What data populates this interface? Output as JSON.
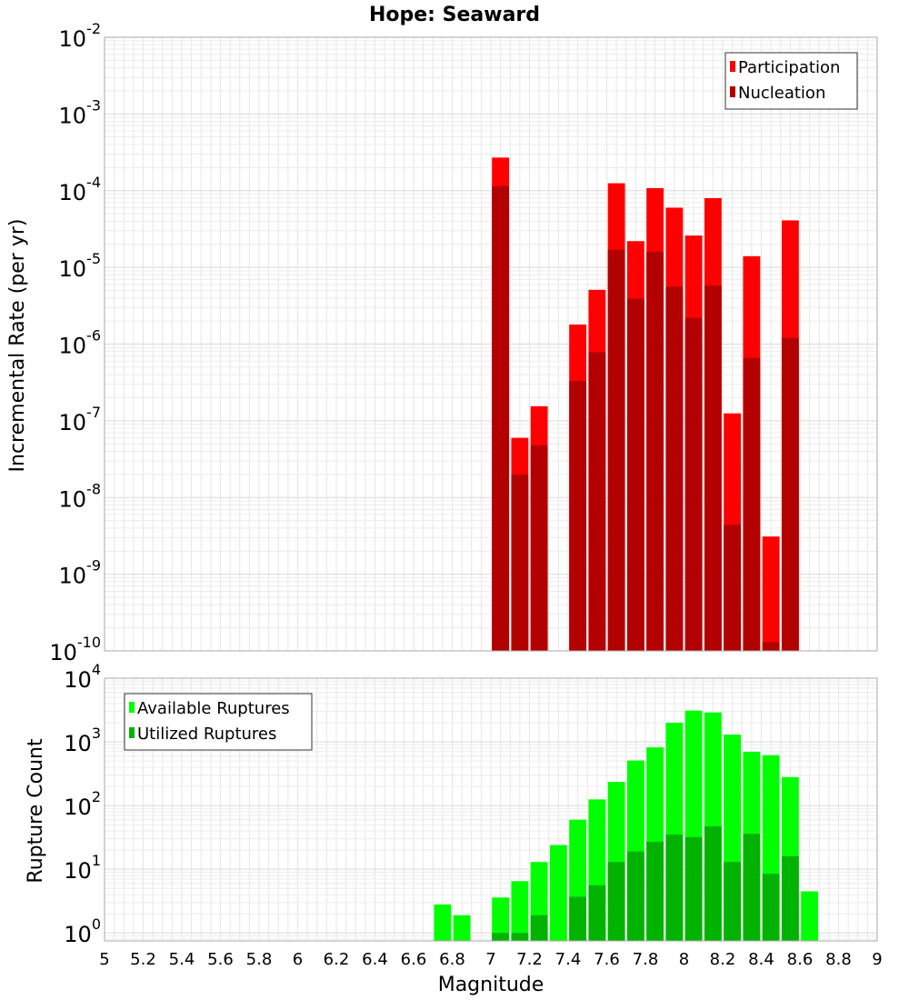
{
  "chart_data": [
    {
      "type": "bar",
      "title": "Hope: Seaward",
      "xlabel": "",
      "ylabel": "Incremental Rate (per yr)",
      "yscale": "log",
      "xlim": [
        5,
        9
      ],
      "ylim": [
        1e-10,
        0.01
      ],
      "bin_width": 0.1,
      "grid": true,
      "legend_position": "top-right",
      "x": [
        7.05,
        7.15,
        7.25,
        7.45,
        7.55,
        7.65,
        7.75,
        7.85,
        7.95,
        8.05,
        8.15,
        8.25,
        8.35,
        8.45,
        8.55
      ],
      "series": [
        {
          "name": "Participation",
          "color": "#ff0000",
          "values": [
            0.00027,
            6e-08,
            1.55e-07,
            1.8e-06,
            5.1e-06,
            0.000125,
            2.2e-05,
            0.000108,
            6e-05,
            2.6e-05,
            8e-05,
            1.25e-07,
            1.4e-05,
            3.1e-09,
            4.1e-05
          ]
        },
        {
          "name": "Nucleation",
          "color": "#b30000",
          "values": [
            0.000115,
            2e-08,
            4.8e-08,
            3.3e-07,
            7.8e-07,
            1.7e-05,
            3.9e-06,
            1.6e-05,
            5.6e-06,
            2.2e-06,
            5.8e-06,
            4.4e-09,
            6.6e-07,
            1.3e-10,
            1.2e-06
          ]
        }
      ]
    },
    {
      "type": "bar",
      "title": "",
      "xlabel": "Magnitude",
      "ylabel": "Rupture Count",
      "yscale": "log",
      "xlim": [
        5,
        9
      ],
      "ylim": [
        0.75,
        10000
      ],
      "bin_width": 0.1,
      "grid": true,
      "legend_position": "top-left",
      "x": [
        6.75,
        6.85,
        7.05,
        7.15,
        7.25,
        7.35,
        7.45,
        7.55,
        7.65,
        7.75,
        7.85,
        7.95,
        8.05,
        8.15,
        8.25,
        8.35,
        8.45,
        8.55,
        8.65
      ],
      "x_ticks": [
        "5",
        "5.2",
        "5.4",
        "5.6",
        "5.8",
        "6",
        "6.2",
        "6.4",
        "6.6",
        "6.8",
        "7",
        "7.2",
        "7.4",
        "7.6",
        "7.8",
        "8",
        "8.2",
        "8.4",
        "8.6",
        "8.8",
        "9"
      ],
      "series": [
        {
          "name": "Available Ruptures",
          "color": "#00ff00",
          "values": [
            2.8,
            1.9,
            3.6,
            6.5,
            13,
            24,
            60,
            125,
            235,
            510,
            820,
            2000,
            3100,
            2900,
            1300,
            700,
            620,
            280,
            4.5
          ]
        },
        {
          "name": "Utilized Ruptures",
          "color": "#00b300",
          "values": [
            null,
            null,
            1,
            1,
            1.9,
            null,
            3.7,
            5.6,
            13,
            19,
            27,
            35,
            32,
            47,
            13,
            36,
            8.5,
            16,
            null
          ]
        }
      ]
    }
  ]
}
